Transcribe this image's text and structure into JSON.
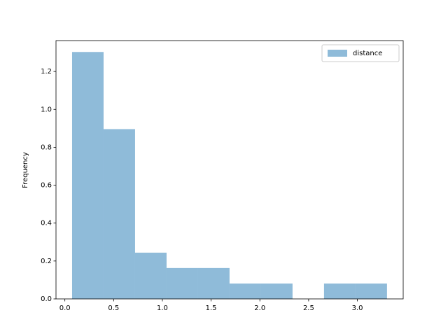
{
  "chart_data": {
    "type": "histogram",
    "y_label": "Frequency",
    "bins": [
      0.074,
      0.397,
      0.72,
      1.043,
      1.366,
      1.689,
      2.012,
      2.335,
      2.658,
      2.981,
      3.304
    ],
    "series": [
      {
        "name": "distance",
        "color": "#1f77b4",
        "values": [
          1.303,
          0.896,
          0.244,
          0.163,
          0.163,
          0.081,
          0.081,
          0,
          0.081,
          0.081
        ]
      }
    ],
    "xlim": [
      -0.091,
      3.47
    ],
    "ylim": [
      0,
      1.363
    ],
    "xticks": [
      {
        "value": 0,
        "label": "0.0"
      },
      {
        "value": 0.5,
        "label": "0.5"
      },
      {
        "value": 1,
        "label": "1.0"
      },
      {
        "value": 1.5,
        "label": "1.5"
      },
      {
        "value": 2,
        "label": "2.0"
      },
      {
        "value": 2.5,
        "label": "2.5"
      },
      {
        "value": 3,
        "label": "3.0"
      }
    ],
    "yticks": [
      {
        "value": 0,
        "label": "0.0"
      },
      {
        "value": 0.2,
        "label": "0.2"
      },
      {
        "value": 0.4,
        "label": "0.4"
      },
      {
        "value": 0.6,
        "label": "0.6"
      },
      {
        "value": 0.8,
        "label": "0.8"
      },
      {
        "value": 1,
        "label": "1.0"
      },
      {
        "value": 1.2,
        "label": "1.2"
      }
    ],
    "alpha": 0.5,
    "legend": "upper right",
    "grid": false
  }
}
